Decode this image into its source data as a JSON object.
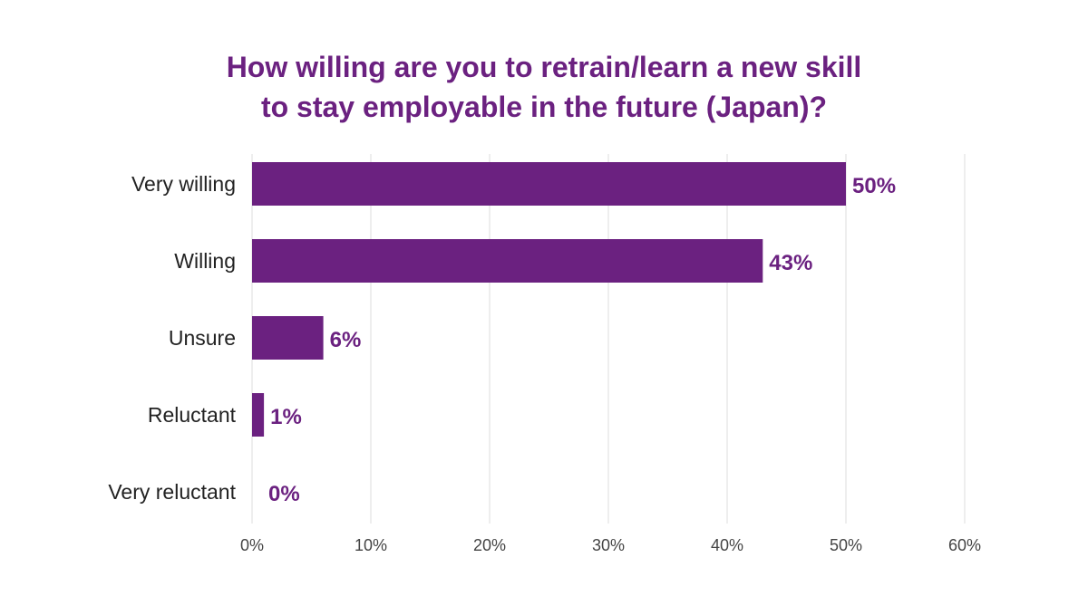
{
  "chart_data": {
    "type": "bar",
    "orientation": "horizontal",
    "title": [
      "How willing are you to retrain/learn a new skill",
      "to stay employable in the future (Japan)?"
    ],
    "categories": [
      "Very willing",
      "Willing",
      "Unsure",
      "Reluctant",
      "Very reluctant"
    ],
    "values": [
      50,
      43,
      6,
      1,
      0
    ],
    "data_labels": [
      "50%",
      "43%",
      "6%",
      "1%",
      "0%"
    ],
    "xlim": [
      0,
      60
    ],
    "x_ticks": [
      0,
      10,
      20,
      30,
      40,
      50,
      60
    ],
    "x_tick_labels": [
      "0%",
      "10%",
      "20%",
      "30%",
      "40%",
      "50%",
      "60%"
    ],
    "grid": "vertical",
    "colors": {
      "bar": "#6b2180",
      "title": "#6b2180",
      "grid": "#dcdcdc"
    }
  }
}
